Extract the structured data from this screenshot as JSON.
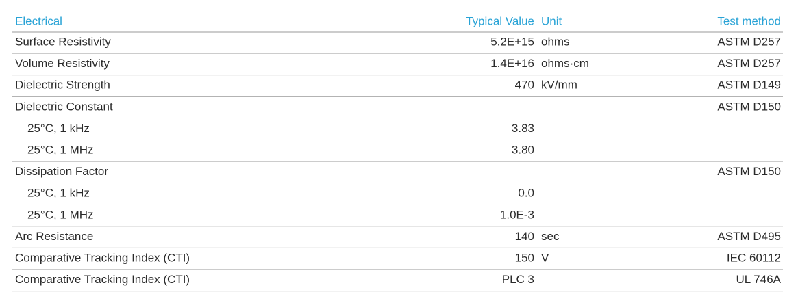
{
  "table": {
    "header": [
      "Electrical",
      "Typical Value",
      "Unit",
      "Test method"
    ],
    "groups": [
      {
        "property": "Surface Resistivity",
        "value": "5.2E+15",
        "unit": "ohms",
        "method": "ASTM D257"
      },
      {
        "property": "Volume Resistivity",
        "value": "1.4E+16",
        "unit": "ohms·cm",
        "method": "ASTM D257"
      },
      {
        "property": "Dielectric Strength",
        "value": "470",
        "unit": "kV/mm",
        "method": "ASTM D149"
      },
      {
        "property": "Dielectric Constant",
        "method": "ASTM D150",
        "subrows": [
          {
            "condition": "25°C, 1 kHz",
            "value": "3.83"
          },
          {
            "condition": "25°C, 1 MHz",
            "value": "3.80"
          }
        ]
      },
      {
        "property": "Dissipation Factor",
        "method": "ASTM D150",
        "subrows": [
          {
            "condition": "25°C, 1 kHz",
            "value": "0.0"
          },
          {
            "condition": "25°C, 1 MHz",
            "value": "1.0E-3"
          }
        ]
      },
      {
        "property": "Arc Resistance",
        "value": "140",
        "unit": "sec",
        "method": "ASTM D495"
      },
      {
        "property": "Comparative Tracking Index (CTI)",
        "value": "150",
        "unit": "V",
        "method": "IEC 60112"
      },
      {
        "property": "Comparative Tracking Index (CTI)",
        "value": "PLC 3",
        "method": "UL 746A"
      }
    ]
  }
}
